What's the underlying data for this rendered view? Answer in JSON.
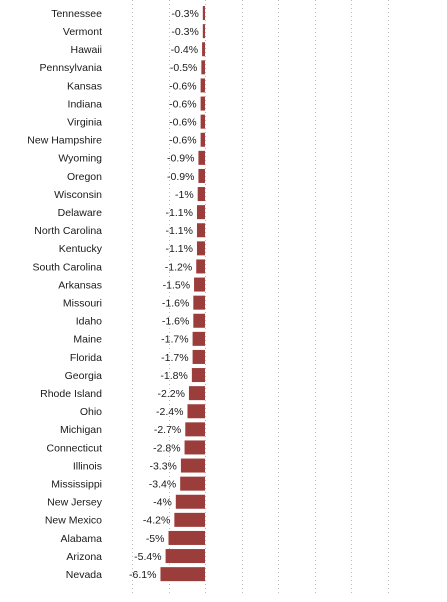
{
  "chart_data": {
    "type": "bar",
    "orientation": "horizontal",
    "categories": [
      "Tennessee",
      "Vermont",
      "Hawaii",
      "Pennsylvania",
      "Kansas",
      "Indiana",
      "Virginia",
      "New Hampshire",
      "Wyoming",
      "Oregon",
      "Wisconsin",
      "Delaware",
      "North Carolina",
      "Kentucky",
      "South Carolina",
      "Arkansas",
      "Missouri",
      "Idaho",
      "Maine",
      "Florida",
      "Georgia",
      "Rhode Island",
      "Ohio",
      "Michigan",
      "Connecticut",
      "Illinois",
      "Mississippi",
      "New Jersey",
      "New Mexico",
      "Alabama",
      "Arizona",
      "Nevada"
    ],
    "values": [
      -0.3,
      -0.3,
      -0.4,
      -0.5,
      -0.6,
      -0.6,
      -0.6,
      -0.6,
      -0.9,
      -0.9,
      -1,
      -1.1,
      -1.1,
      -1.1,
      -1.2,
      -1.5,
      -1.6,
      -1.6,
      -1.7,
      -1.7,
      -1.8,
      -2.2,
      -2.4,
      -2.7,
      -2.8,
      -3.3,
      -3.4,
      -4,
      -4.2,
      -5,
      -5.4,
      -6.1
    ],
    "value_labels": [
      "-0.3%",
      "-0.3%",
      "-0.4%",
      "-0.5%",
      "-0.6%",
      "-0.6%",
      "-0.6%",
      "-0.6%",
      "-0.9%",
      "-0.9%",
      "-1%",
      "-1.1%",
      "-1.1%",
      "-1.1%",
      "-1.2%",
      "-1.5%",
      "-1.6%",
      "-1.6%",
      "-1.7%",
      "-1.7%",
      "-1.8%",
      "-2.2%",
      "-2.4%",
      "-2.7%",
      "-2.8%",
      "-3.3%",
      "-3.4%",
      "-4%",
      "-4.2%",
      "-5%",
      "-5.4%",
      "-6.1%"
    ],
    "xlim": [
      -10,
      25
    ],
    "bar_color": "#9b3d3a",
    "grid": true,
    "title": "",
    "xlabel": "",
    "ylabel": ""
  }
}
